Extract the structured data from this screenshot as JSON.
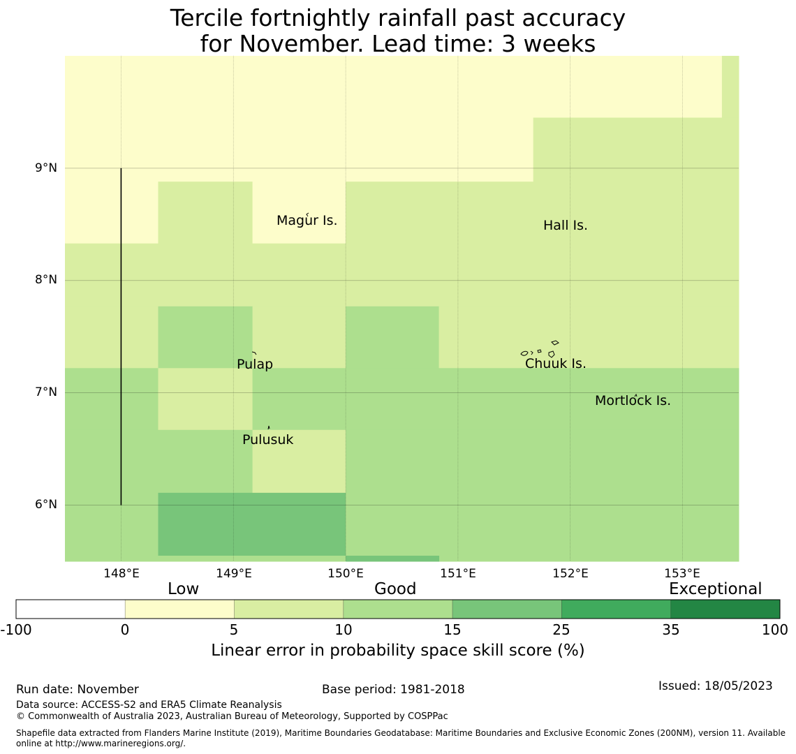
{
  "title": {
    "line1": "Tercile fortnightly rainfall past accuracy",
    "line2": "for November. Lead time: 3 weeks"
  },
  "map": {
    "lon_range": [
      147.5,
      153.5
    ],
    "lat_range": [
      5.5,
      10.0
    ],
    "lon_ticks": [
      "148°E",
      "149°E",
      "150°E",
      "151°E",
      "152°E",
      "153°E"
    ],
    "lat_ticks": [
      "9°N",
      "8°N",
      "7°N",
      "6°N"
    ],
    "boundary_line": {
      "lon": 148.0,
      "lat_from": 6.0,
      "lat_to": 9.0
    },
    "cells": [
      {
        "lon": [
          147.5,
          153.35
        ],
        "lat": [
          9.45,
          10.0
        ],
        "category": "0-5"
      },
      {
        "lon": [
          153.35,
          153.5
        ],
        "lat": [
          9.45,
          10.0
        ],
        "category": "5-10"
      },
      {
        "lon": [
          147.5,
          151.67
        ],
        "lat": [
          8.88,
          9.45
        ],
        "category": "0-5"
      },
      {
        "lon": [
          151.67,
          153.5
        ],
        "lat": [
          8.88,
          9.45
        ],
        "category": "5-10"
      },
      {
        "lon": [
          147.5,
          148.33
        ],
        "lat": [
          8.33,
          8.88
        ],
        "category": "0-5"
      },
      {
        "lon": [
          148.33,
          149.17
        ],
        "lat": [
          8.33,
          8.88
        ],
        "category": "5-10"
      },
      {
        "lon": [
          149.17,
          150.0
        ],
        "lat": [
          8.33,
          8.88
        ],
        "category": "0-5"
      },
      {
        "lon": [
          150.0,
          153.5
        ],
        "lat": [
          8.33,
          8.88
        ],
        "category": "5-10"
      },
      {
        "lon": [
          147.5,
          153.5
        ],
        "lat": [
          7.77,
          8.33
        ],
        "category": "5-10"
      },
      {
        "lon": [
          147.5,
          148.33
        ],
        "lat": [
          7.22,
          7.77
        ],
        "category": "5-10"
      },
      {
        "lon": [
          148.33,
          149.17
        ],
        "lat": [
          7.22,
          7.77
        ],
        "category": "10-15"
      },
      {
        "lon": [
          149.17,
          150.0
        ],
        "lat": [
          7.22,
          7.77
        ],
        "category": "5-10"
      },
      {
        "lon": [
          150.0,
          150.83
        ],
        "lat": [
          7.22,
          7.77
        ],
        "category": "10-15"
      },
      {
        "lon": [
          150.83,
          153.5
        ],
        "lat": [
          7.22,
          7.77
        ],
        "category": "5-10"
      },
      {
        "lon": [
          147.5,
          148.33
        ],
        "lat": [
          6.67,
          7.22
        ],
        "category": "10-15"
      },
      {
        "lon": [
          148.33,
          149.17
        ],
        "lat": [
          6.67,
          7.22
        ],
        "category": "5-10"
      },
      {
        "lon": [
          149.17,
          153.5
        ],
        "lat": [
          6.67,
          7.22
        ],
        "category": "10-15"
      },
      {
        "lon": [
          147.5,
          149.17
        ],
        "lat": [
          6.11,
          6.67
        ],
        "category": "10-15"
      },
      {
        "lon": [
          149.17,
          150.0
        ],
        "lat": [
          6.11,
          6.67
        ],
        "category": "5-10"
      },
      {
        "lon": [
          150.0,
          153.5
        ],
        "lat": [
          6.11,
          6.67
        ],
        "category": "10-15"
      },
      {
        "lon": [
          147.5,
          148.33
        ],
        "lat": [
          5.5,
          6.11
        ],
        "category": "10-15"
      },
      {
        "lon": [
          148.33,
          150.0
        ],
        "lat": [
          5.55,
          6.11
        ],
        "category": "15-25"
      },
      {
        "lon": [
          148.33,
          150.0
        ],
        "lat": [
          5.5,
          5.55
        ],
        "category": "10-15"
      },
      {
        "lon": [
          150.0,
          153.5
        ],
        "lat": [
          5.5,
          6.11
        ],
        "category": "10-15"
      },
      {
        "lon": [
          150.0,
          150.83
        ],
        "lat": [
          5.5,
          5.55
        ],
        "category": "15-25"
      }
    ],
    "places": [
      {
        "name": "Magur Is.",
        "lon": 149.67,
        "lat": 8.6
      },
      {
        "name": "Hall Is.",
        "lon": 151.97,
        "lat": 8.56
      },
      {
        "name": "Pulap",
        "lon": 149.2,
        "lat": 7.37
      },
      {
        "name": "Chuuk Is.",
        "lon": 151.85,
        "lat": 7.4
      },
      {
        "name": "Mortlock Is.",
        "lon": 152.57,
        "lat": 6.98
      },
      {
        "name": "Pulusuk",
        "lon": 149.32,
        "lat": 6.7
      }
    ]
  },
  "colorbar": {
    "headers": [
      "Low",
      "Good",
      "Exceptional"
    ],
    "ticks": [
      "-100",
      "0",
      "5",
      "10",
      "15",
      "25",
      "35",
      "100"
    ],
    "colors": [
      "#ffffff",
      "#fdfdcb",
      "#d9eea2",
      "#addf8e",
      "#78c57a",
      "#40ab5d",
      "#238644"
    ],
    "label": "Linear error in probability space skill score (%)"
  },
  "category_colors": {
    "0-5": "#fdfdcb",
    "5-10": "#d9eea2",
    "10-15": "#addf8e",
    "15-25": "#78c57a"
  },
  "footer": {
    "run_date": "Run date: November",
    "base_period": "Base period: 1981-2018",
    "issued": "Issued: 18/05/2023",
    "data_source": "Data source: ACCESS-S2 and ERA5 Climate Reanalysis",
    "copyright": "© Commonwealth of Australia 2023, Australian Bureau of Meteorology, Supported by COSPPac",
    "shapefile_line1": "Shapefile data extracted from Flanders Marine Institute (2019), Maritime Boundaries Geodatabase: Maritime Boundaries and Exclusive Economic Zones (200NM), version 11. Available",
    "shapefile_line2": "online at http://www.marineregions.org/."
  }
}
